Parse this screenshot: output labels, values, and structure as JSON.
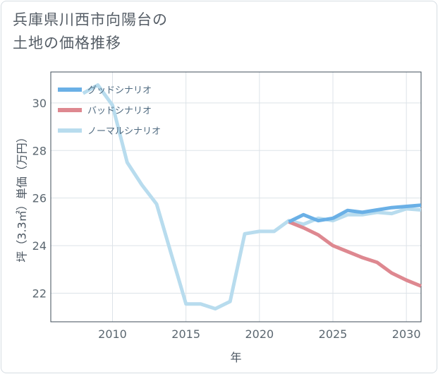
{
  "chart_data": {
    "type": "line",
    "title": [
      "兵庫県川西市向陽台の",
      "土地の価格推移"
    ],
    "xlabel": "年",
    "ylabel": "坪（3.3㎡）単価（万円）",
    "xlim": [
      2005.8,
      2031
    ],
    "ylim": [
      20.8,
      31.3
    ],
    "x_ticks": [
      2010,
      2015,
      2020,
      2025,
      2030
    ],
    "y_ticks": [
      22,
      24,
      26,
      28,
      30
    ],
    "grid": true,
    "legend_position": "top-left",
    "series": [
      {
        "name": "グッドシナリオ",
        "color": "#6ab0e6",
        "x": [
          2022,
          2023,
          2024,
          2025,
          2026,
          2027,
          2028,
          2029,
          2030,
          2031
        ],
        "values": [
          25.0,
          25.3,
          25.05,
          25.15,
          25.48,
          25.4,
          25.5,
          25.6,
          25.65,
          25.7
        ]
      },
      {
        "name": "バッドシナリオ",
        "color": "#de8890",
        "x": [
          2022,
          2023,
          2024,
          2025,
          2026,
          2027,
          2028,
          2029,
          2030,
          2031
        ],
        "values": [
          25.0,
          24.75,
          24.45,
          24.0,
          23.75,
          23.5,
          23.3,
          22.85,
          22.55,
          22.3
        ]
      },
      {
        "name": "ノーマルシナリオ",
        "color": "#b8dcee",
        "x": [
          2008,
          2009,
          2010,
          2011,
          2012,
          2013,
          2014,
          2015,
          2016,
          2017,
          2018,
          2019,
          2020,
          2021,
          2022,
          2023,
          2024,
          2025,
          2026,
          2027,
          2028,
          2029,
          2030,
          2031
        ],
        "values": [
          30.4,
          30.75,
          29.9,
          27.5,
          26.55,
          25.75,
          23.65,
          21.55,
          21.55,
          21.35,
          21.65,
          24.5,
          24.6,
          24.6,
          25.05,
          24.9,
          25.15,
          25.05,
          25.3,
          25.3,
          25.4,
          25.35,
          25.55,
          25.5
        ]
      }
    ]
  }
}
